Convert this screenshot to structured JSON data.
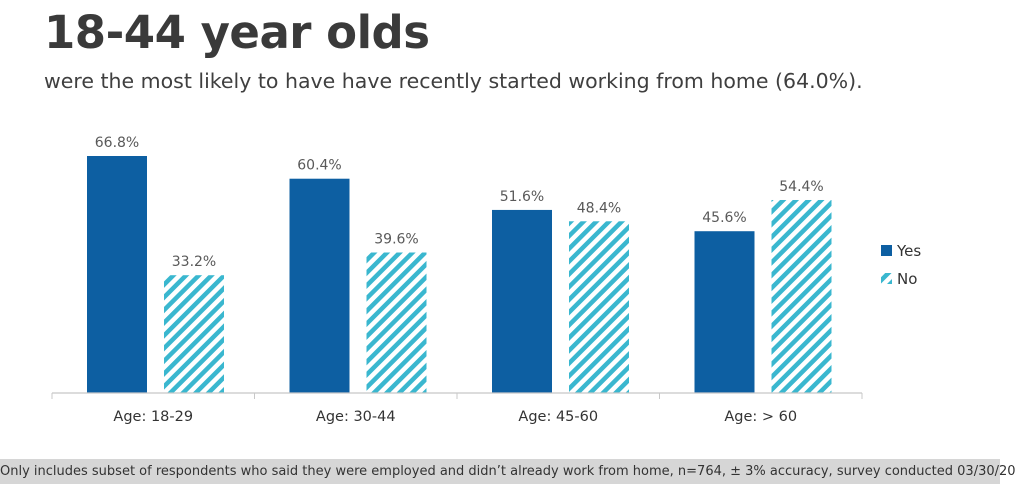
{
  "header": {
    "title": "18-44 year olds",
    "subtitle": "were the most likely to have have recently started working from home (64.0%)."
  },
  "footer": {
    "note": "Only includes subset of respondents who said they were employed and didn’t already work from home, n=764, ± 3% accuracy, survey conducted 03/30/20"
  },
  "colors": {
    "yes": "#0d5fa2",
    "no": "#3ab7cf",
    "axis": "#c8c8c8"
  },
  "chart_data": {
    "type": "bar",
    "categories": [
      "Age: 18-29",
      "Age: 30-44",
      "Age: 45-60",
      "Age: > 60"
    ],
    "series": [
      {
        "name": "Yes",
        "values": [
          66.8,
          60.4,
          51.6,
          45.6
        ],
        "labels": [
          "66.8%",
          "60.4%",
          "51.6%",
          "45.6%"
        ],
        "pattern": "solid"
      },
      {
        "name": "No",
        "values": [
          33.2,
          39.6,
          48.4,
          54.4
        ],
        "labels": [
          "33.2%",
          "39.6%",
          "48.4%",
          "54.4%"
        ],
        "pattern": "hatched"
      }
    ],
    "ylim": [
      0,
      66.8
    ],
    "legend": "right",
    "grid": false
  }
}
